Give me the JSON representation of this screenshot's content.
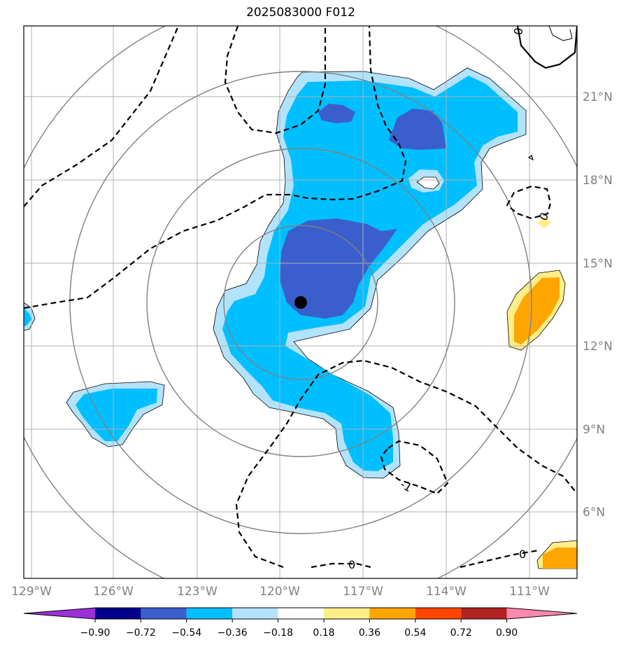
{
  "title": "2025083000 F012",
  "map": {
    "lon_labels": [
      "129°W",
      "126°W",
      "123°W",
      "120°W",
      "117°W",
      "114°W",
      "111°W"
    ],
    "lat_labels": [
      "21°N",
      "18°N",
      "15°N",
      "12°N",
      "9°N",
      "6°N"
    ],
    "contour_labels": [
      "0",
      "0",
      "0",
      "-1",
      "0",
      "0"
    ],
    "colors": {
      "light_blue": "#b3e3fc",
      "cyan": "#00bfff",
      "royal_blue": "#3a5fcd",
      "yellow": "#ffee88",
      "orange": "#ffa500",
      "grid": "#b0b0b0",
      "range_rings": "#808080"
    }
  },
  "colorbar": {
    "ticks": [
      "−0.90",
      "−0.72",
      "−0.54",
      "−0.36",
      "−0.18",
      "0.18",
      "0.36",
      "0.54",
      "0.72",
      "0.90"
    ],
    "colors": [
      "#9b30d9",
      "#00008b",
      "#3a5fcd",
      "#00bfff",
      "#b3e3fc",
      "#ffffff",
      "#ffee88",
      "#ffa500",
      "#ff4500",
      "#b22222",
      "#ff88b0"
    ]
  }
}
